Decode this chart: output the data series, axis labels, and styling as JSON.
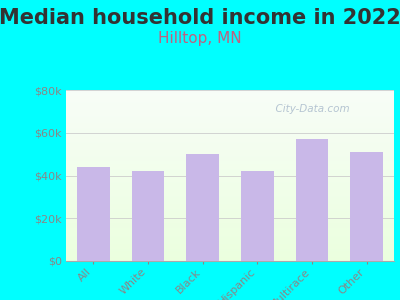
{
  "title": "Median household income in 2022",
  "subtitle": "Hilltop, MN",
  "categories": [
    "All",
    "White",
    "Black",
    "Hispanic",
    "Multirace",
    "Other"
  ],
  "values": [
    44000,
    42000,
    50000,
    42000,
    57000,
    51000
  ],
  "bar_color": "#c9b8e8",
  "background_outer": "#00ffff",
  "ylim": [
    0,
    80000
  ],
  "yticks": [
    0,
    20000,
    40000,
    60000,
    80000
  ],
  "ytick_labels": [
    "$0",
    "$20k",
    "$40k",
    "$60k",
    "$80k"
  ],
  "title_fontsize": 15,
  "subtitle_fontsize": 11,
  "subtitle_color": "#c06080",
  "watermark": "  City-Data.com",
  "watermark_color": "#aabbcc",
  "title_color": "#333333",
  "tick_label_color": "#888888",
  "xtick_label_color": "#888888"
}
